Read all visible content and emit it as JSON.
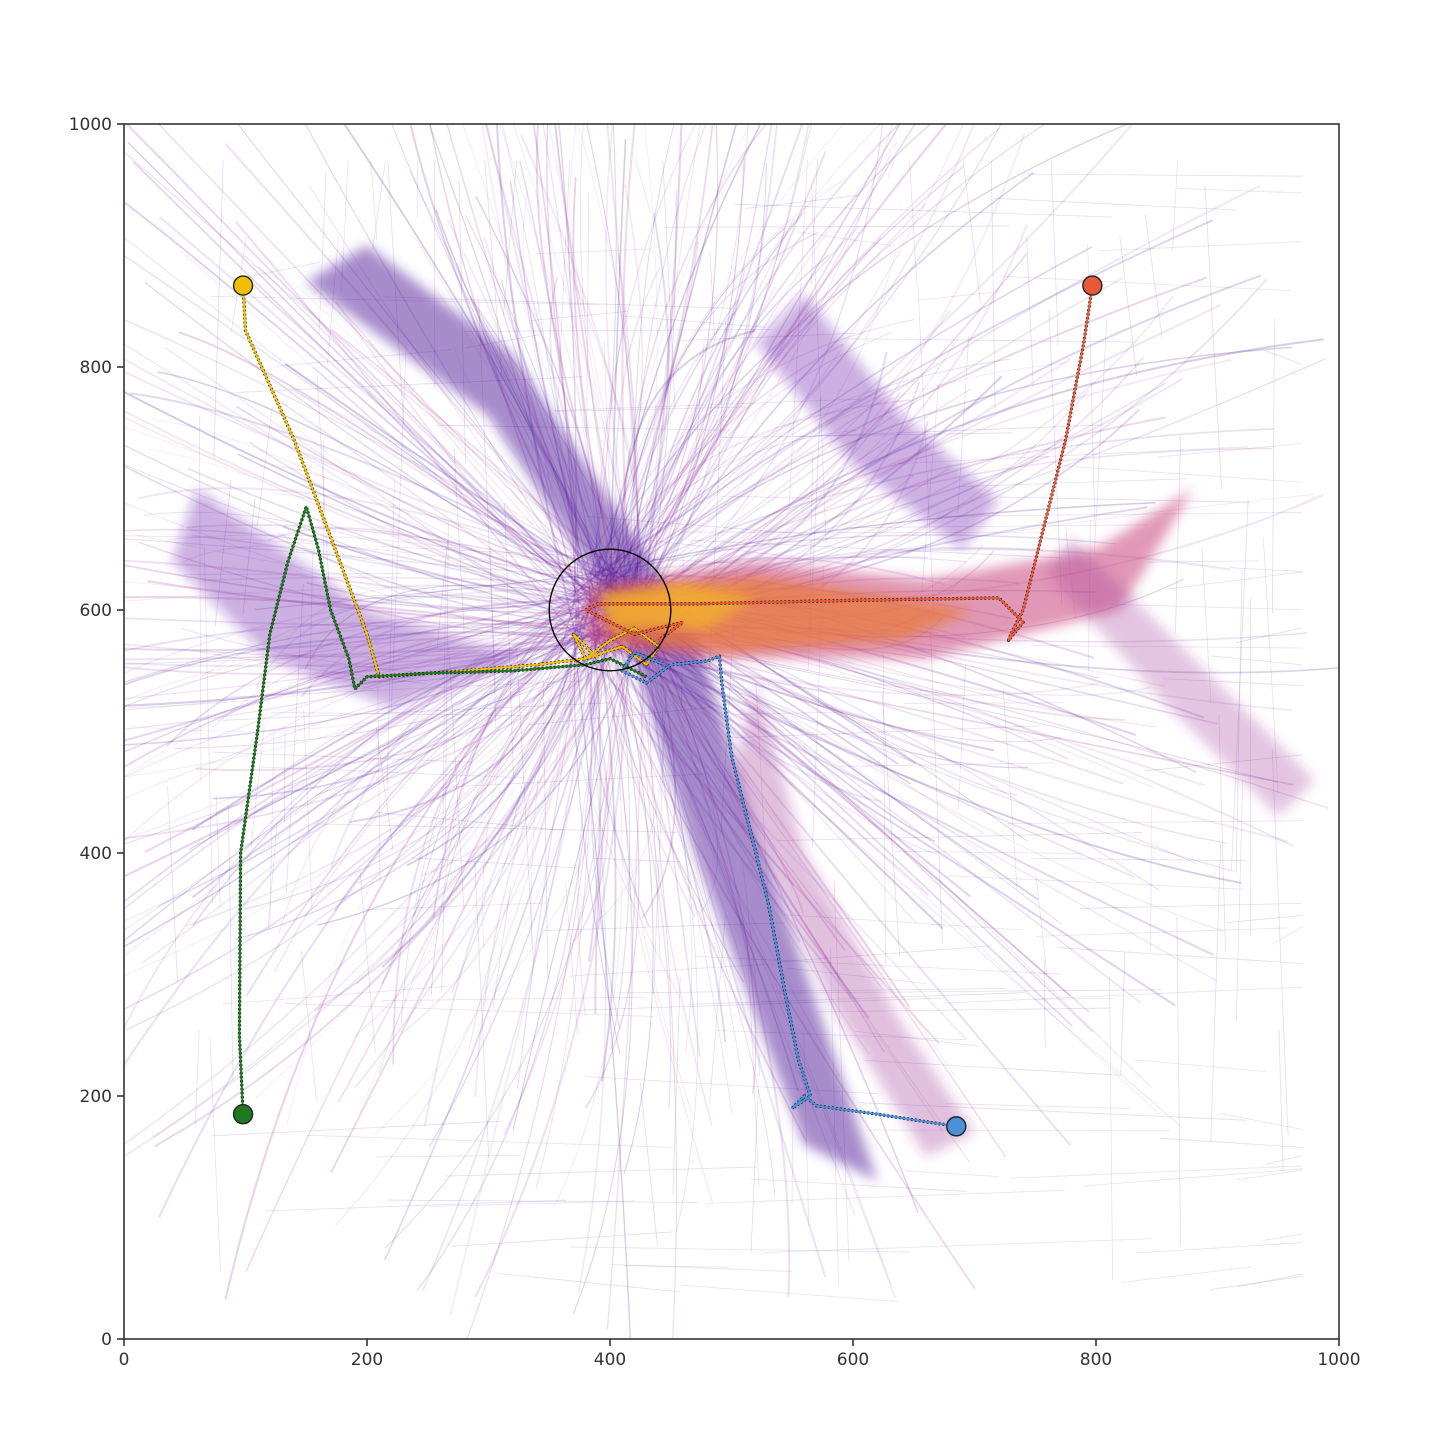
{
  "chart_data": {
    "type": "line",
    "title": "",
    "xlabel": "",
    "ylabel": "",
    "xlim": [
      0,
      1000
    ],
    "ylim": [
      0,
      1000
    ],
    "grid": false,
    "x_ticks": [
      "0",
      "200",
      "400",
      "600",
      "800",
      "1000"
    ],
    "y_ticks": [
      "0",
      "200",
      "400",
      "600",
      "800",
      "1000"
    ],
    "target_circle": {
      "center": [
        400,
        600
      ],
      "radius": 50
    },
    "background": {
      "description_colormap": "plasma",
      "colors": [
        "#3a0a8c",
        "#6a1fa8",
        "#9c2a92",
        "#c8457a",
        "#e87a3c",
        "#f4b22a"
      ]
    },
    "series": [
      {
        "color": "#f0c000",
        "start": [
          98,
          867
        ],
        "x": [
          98,
          100,
          140,
          170,
          200,
          210,
          280,
          340,
          380,
          400,
          420,
          440,
          430,
          410,
          395,
          380,
          370,
          390
        ],
        "y": [
          867,
          830,
          740,
          660,
          580,
          545,
          550,
          555,
          560,
          575,
          585,
          570,
          555,
          570,
          565,
          560,
          580,
          560
        ]
      },
      {
        "color": "#e8593a",
        "start": [
          797,
          867
        ],
        "x": [
          797,
          790,
          775,
          755,
          745,
          740,
          735,
          730,
          728,
          740,
          720,
          600,
          470,
          390,
          380,
          420,
          460,
          440
        ],
        "y": [
          867,
          820,
          740,
          660,
          620,
          600,
          590,
          580,
          575,
          590,
          610,
          608,
          605,
          605,
          600,
          580,
          590,
          575
        ]
      },
      {
        "color": "#1e7a1e",
        "start": [
          98,
          185
        ],
        "x": [
          98,
          95,
          96,
          110,
          120,
          135,
          145,
          150,
          160,
          170,
          185,
          190,
          200,
          250,
          320,
          380,
          400,
          430
        ],
        "y": [
          185,
          250,
          400,
          500,
          580,
          640,
          670,
          685,
          650,
          600,
          560,
          535,
          545,
          548,
          550,
          555,
          560,
          545
        ]
      },
      {
        "color": "#4a8fd8",
        "start": [
          685,
          175
        ],
        "x": [
          685,
          620,
          570,
          560,
          550,
          565,
          555,
          545,
          530,
          500,
          492,
          490,
          480,
          450,
          430,
          410,
          420,
          445
        ],
        "y": [
          175,
          185,
          192,
          200,
          190,
          200,
          230,
          280,
          360,
          480,
          540,
          562,
          558,
          555,
          540,
          550,
          565,
          555
        ]
      }
    ]
  }
}
